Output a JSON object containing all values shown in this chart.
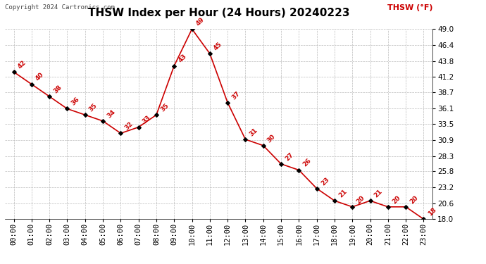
{
  "title": "THSW Index per Hour (24 Hours) 20240223",
  "copyright": "Copyright 2024 Cartronics.com",
  "legend_label": "THSW (°F)",
  "hours": [
    "00:00",
    "01:00",
    "02:00",
    "03:00",
    "04:00",
    "05:00",
    "06:00",
    "07:00",
    "08:00",
    "09:00",
    "10:00",
    "11:00",
    "12:00",
    "13:00",
    "14:00",
    "15:00",
    "16:00",
    "17:00",
    "18:00",
    "19:00",
    "20:00",
    "21:00",
    "22:00",
    "23:00"
  ],
  "values": [
    42,
    40,
    38,
    36,
    35,
    34,
    32,
    33,
    35,
    43,
    49,
    45,
    37,
    31,
    30,
    27,
    26,
    23,
    21,
    20,
    21,
    20,
    20,
    18
  ],
  "line_color": "#cc0000",
  "marker_color": "#000000",
  "grid_color": "#bbbbbb",
  "background_color": "#ffffff",
  "ylim": [
    18.0,
    49.0
  ],
  "yticks": [
    18.0,
    20.6,
    23.2,
    25.8,
    28.3,
    30.9,
    33.5,
    36.1,
    38.7,
    41.2,
    43.8,
    46.4,
    49.0
  ],
  "title_fontsize": 11,
  "annotation_fontsize": 6.5,
  "tick_fontsize": 7.5,
  "copyright_fontsize": 6.5,
  "legend_fontsize": 8
}
